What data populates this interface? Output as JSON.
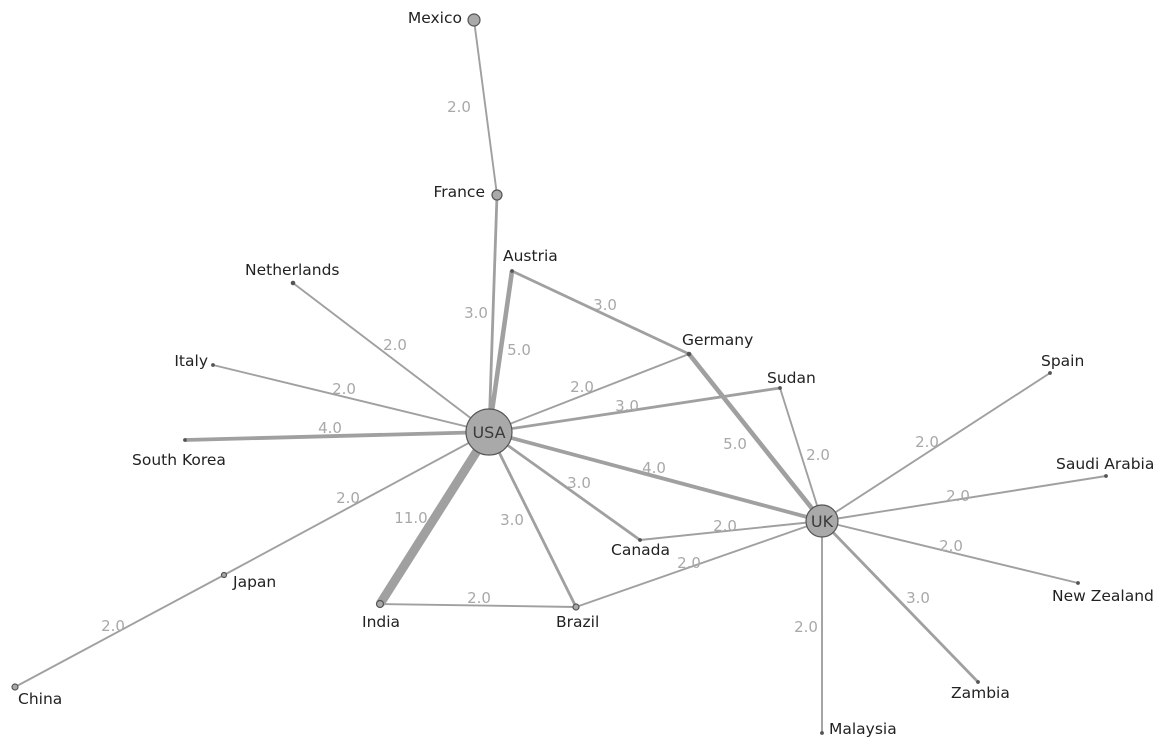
{
  "colors": {
    "edge": "#a0a0a0",
    "edge_label": "#a8a8a8",
    "node_fill": "#a9a9a9",
    "node_stroke": "#555555",
    "label": "#222222"
  },
  "nodes": [
    {
      "id": "mexico",
      "label": "Mexico"
    },
    {
      "id": "france",
      "label": "France"
    },
    {
      "id": "austria",
      "label": "Austria"
    },
    {
      "id": "netherlands",
      "label": "Netherlands"
    },
    {
      "id": "italy",
      "label": "Italy"
    },
    {
      "id": "south-korea",
      "label": "South Korea"
    },
    {
      "id": "usa",
      "label": "USA"
    },
    {
      "id": "germany",
      "label": "Germany"
    },
    {
      "id": "sudan",
      "label": "Sudan"
    },
    {
      "id": "spain",
      "label": "Spain"
    },
    {
      "id": "saudi-arabia",
      "label": "Saudi Arabia"
    },
    {
      "id": "uk",
      "label": "UK"
    },
    {
      "id": "new-zealand",
      "label": "New Zealand"
    },
    {
      "id": "canada",
      "label": "Canada"
    },
    {
      "id": "japan",
      "label": "Japan"
    },
    {
      "id": "india",
      "label": "India"
    },
    {
      "id": "brazil",
      "label": "Brazil"
    },
    {
      "id": "zambia",
      "label": "Zambia"
    },
    {
      "id": "china",
      "label": "China"
    },
    {
      "id": "malaysia",
      "label": "Malaysia"
    }
  ],
  "edges": [
    {
      "source": "mexico",
      "target": "france",
      "weight": 2.0,
      "label": "2.0"
    },
    {
      "source": "france",
      "target": "usa",
      "weight": 3.0,
      "label": "3.0"
    },
    {
      "source": "austria",
      "target": "usa",
      "weight": 5.0,
      "label": "5.0"
    },
    {
      "source": "austria",
      "target": "germany",
      "weight": 3.0,
      "label": "3.0"
    },
    {
      "source": "netherlands",
      "target": "usa",
      "weight": 2.0,
      "label": "2.0"
    },
    {
      "source": "italy",
      "target": "usa",
      "weight": 2.0,
      "label": "2.0"
    },
    {
      "source": "south-korea",
      "target": "usa",
      "weight": 4.0,
      "label": "4.0"
    },
    {
      "source": "usa",
      "target": "germany",
      "weight": 2.0,
      "label": "2.0"
    },
    {
      "source": "usa",
      "target": "sudan",
      "weight": 3.0,
      "label": "3.0"
    },
    {
      "source": "usa",
      "target": "uk",
      "weight": 4.0,
      "label": "4.0"
    },
    {
      "source": "usa",
      "target": "canada",
      "weight": 3.0,
      "label": "3.0"
    },
    {
      "source": "usa",
      "target": "brazil",
      "weight": 3.0,
      "label": "3.0"
    },
    {
      "source": "usa",
      "target": "india",
      "weight": 11.0,
      "label": "11.0"
    },
    {
      "source": "usa",
      "target": "japan",
      "weight": 2.0,
      "label": "2.0"
    },
    {
      "source": "japan",
      "target": "china",
      "weight": 2.0,
      "label": "2.0"
    },
    {
      "source": "india",
      "target": "brazil",
      "weight": 2.0,
      "label": "2.0"
    },
    {
      "source": "germany",
      "target": "uk",
      "weight": 5.0,
      "label": "5.0"
    },
    {
      "source": "sudan",
      "target": "uk",
      "weight": 2.0,
      "label": "2.0"
    },
    {
      "source": "canada",
      "target": "uk",
      "weight": 2.0,
      "label": "2.0"
    },
    {
      "source": "brazil",
      "target": "uk",
      "weight": 2.0,
      "label": "2.0"
    },
    {
      "source": "uk",
      "target": "spain",
      "weight": 2.0,
      "label": "2.0"
    },
    {
      "source": "uk",
      "target": "saudi-arabia",
      "weight": 2.0,
      "label": "2.0"
    },
    {
      "source": "uk",
      "target": "new-zealand",
      "weight": 2.0,
      "label": "2.0"
    },
    {
      "source": "uk",
      "target": "zambia",
      "weight": 3.0,
      "label": "3.0"
    },
    {
      "source": "uk",
      "target": "malaysia",
      "weight": 2.0,
      "label": "2.0"
    }
  ]
}
